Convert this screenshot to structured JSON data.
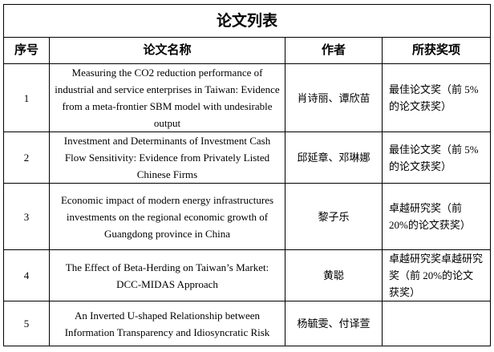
{
  "table": {
    "title": "论文列表",
    "headers": [
      "序号",
      "论文名称",
      "作者",
      "所获奖项"
    ],
    "rows": [
      {
        "no": "1",
        "title": "Measuring the CO2 reduction performance of industrial and service enterprises in Taiwan: Evidence from a meta-frontier SBM model with undesirable output",
        "authors": "肖诗丽、谭欣苗",
        "award": "最佳论文奖（前 5%的论文获奖）"
      },
      {
        "no": "2",
        "title": "Investment and Determinants of Investment Cash Flow Sensitivity: Evidence from Privately Listed Chinese Firms",
        "authors": "邱延章、邓琳娜",
        "award": "最佳论文奖（前 5%的论文获奖）"
      },
      {
        "no": "3",
        "title": "Economic impact of modern energy infrastructures investments on the regional economic growth of Guangdong province in China",
        "authors": "黎子乐",
        "award": "卓越研究奖（前 20%的论文获奖）"
      },
      {
        "no": "4",
        "title": "The Effect of Beta-Herding on Taiwan’s Market: DCC-MIDAS Approach",
        "authors": "黄聪",
        "award": "卓越研究奖卓越研究奖（前 20%的论文获奖）"
      },
      {
        "no": "5",
        "title": "An Inverted U-shaped Relationship between Information Transparency and Idiosyncratic Risk",
        "authors": "杨毓雯、付译萱",
        "award": ""
      }
    ]
  }
}
